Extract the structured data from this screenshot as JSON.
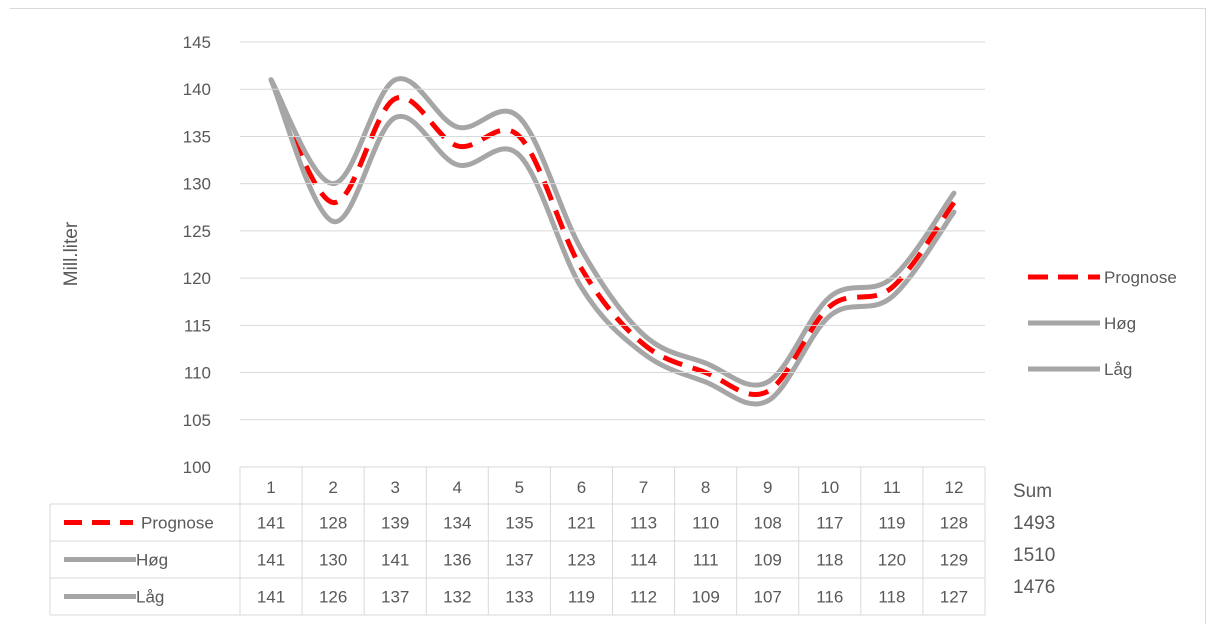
{
  "chart_data": {
    "type": "line",
    "ylabel": "Mill.liter",
    "ylim": [
      100,
      145
    ],
    "yticks": [
      100,
      105,
      110,
      115,
      120,
      125,
      130,
      135,
      140,
      145
    ],
    "categories": [
      "1",
      "2",
      "3",
      "4",
      "5",
      "6",
      "7",
      "8",
      "9",
      "10",
      "11",
      "12"
    ],
    "series": [
      {
        "name": "Prognose",
        "values": [
          141,
          128,
          139,
          134,
          135,
          121,
          113,
          110,
          108,
          117,
          119,
          128
        ],
        "color": "#ff0000",
        "style": "dashed"
      },
      {
        "name": "Høg",
        "values": [
          141,
          130,
          141,
          136,
          137,
          123,
          114,
          111,
          109,
          118,
          120,
          129
        ],
        "color": "#a6a6a6",
        "style": "solid"
      },
      {
        "name": "Låg",
        "values": [
          141,
          126,
          137,
          132,
          133,
          119,
          112,
          109,
          107,
          116,
          118,
          127
        ],
        "color": "#a6a6a6",
        "style": "solid"
      }
    ],
    "grid": true,
    "legend": "right",
    "data_table": true,
    "sum_label": "Sum",
    "sums": [
      "1493",
      "1510",
      "1476"
    ]
  }
}
